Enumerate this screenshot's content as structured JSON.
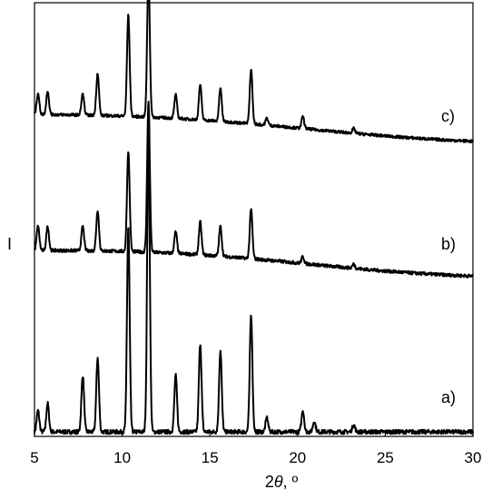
{
  "chart_data": {
    "type": "line",
    "xlabel_prefix": "2",
    "xlabel_symbol": "θ",
    "xlabel_suffix": ", º",
    "ylabel": "I",
    "xlim": [
      5,
      30
    ],
    "x_ticks": [
      5,
      10,
      15,
      20,
      25,
      30
    ],
    "grid": false,
    "line_color": "#000000",
    "series": [
      {
        "name": "a)",
        "baseline": [
          0.0,
          0.0
        ],
        "wave_amp": 0.0,
        "peaks": [
          [
            5.2,
            0.06
          ],
          [
            5.75,
            0.08
          ],
          [
            7.75,
            0.16
          ],
          [
            8.6,
            0.21
          ],
          [
            10.35,
            0.58
          ],
          [
            11.5,
            0.84
          ],
          [
            13.05,
            0.16
          ],
          [
            14.45,
            0.25
          ],
          [
            15.6,
            0.23
          ],
          [
            17.35,
            0.33
          ],
          [
            18.25,
            0.04
          ],
          [
            20.3,
            0.06
          ],
          [
            20.95,
            0.03
          ],
          [
            23.2,
            0.02
          ]
        ]
      },
      {
        "name": "b)",
        "baseline": [
          0.08,
          0.0
        ],
        "wave_amp": 0.015,
        "peaks": [
          [
            5.2,
            0.09
          ],
          [
            5.75,
            0.09
          ],
          [
            7.75,
            0.09
          ],
          [
            8.6,
            0.15
          ],
          [
            10.35,
            0.37
          ],
          [
            11.5,
            0.55
          ],
          [
            13.05,
            0.08
          ],
          [
            14.45,
            0.12
          ],
          [
            15.6,
            0.11
          ],
          [
            17.35,
            0.18
          ],
          [
            20.3,
            0.025
          ],
          [
            23.2,
            0.015
          ]
        ]
      },
      {
        "name": "c)",
        "baseline": [
          0.1,
          0.0
        ],
        "wave_amp": 0.015,
        "peaks": [
          [
            5.2,
            0.09
          ],
          [
            5.75,
            0.1
          ],
          [
            7.75,
            0.09
          ],
          [
            8.6,
            0.18
          ],
          [
            10.35,
            0.43
          ],
          [
            11.5,
            0.61
          ],
          [
            13.05,
            0.1
          ],
          [
            14.45,
            0.15
          ],
          [
            15.6,
            0.14
          ],
          [
            17.35,
            0.23
          ],
          [
            18.25,
            0.03
          ],
          [
            20.3,
            0.05
          ],
          [
            23.2,
            0.02
          ]
        ]
      }
    ]
  }
}
